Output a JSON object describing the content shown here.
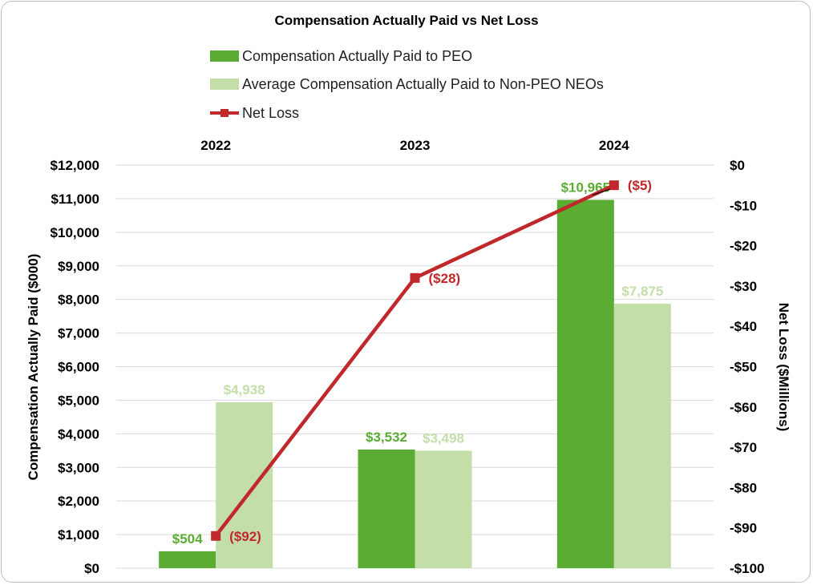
{
  "chart_data": {
    "type": "bar",
    "title": "Compensation Actually Paid vs Net Loss",
    "categories": [
      "2022",
      "2023",
      "2024"
    ],
    "ylabel": "Compensation Actually Paid ($000)",
    "y2label": "Net Loss ($Millions)",
    "ylim": [
      0,
      12000
    ],
    "y2lim": [
      -100,
      0
    ],
    "yticks": [
      "$0",
      "$1,000",
      "$2,000",
      "$3,000",
      "$4,000",
      "$5,000",
      "$6,000",
      "$7,000",
      "$8,000",
      "$9,000",
      "$10,000",
      "$11,000",
      "$12,000"
    ],
    "y2ticks": [
      "-$100",
      "-$90",
      "-$80",
      "-$70",
      "-$60",
      "-$50",
      "-$40",
      "-$30",
      "-$20",
      "-$10",
      "$0"
    ],
    "grid": true,
    "legend_position": "top",
    "series": [
      {
        "name": "Compensation Actually Paid to PEO",
        "type": "bar",
        "axis": "left",
        "color": "#5aac33",
        "values": [
          504,
          3532,
          10965
        ],
        "labels": [
          "$504",
          "$3,532",
          "$10,965"
        ]
      },
      {
        "name": "Average Compensation Actually Paid to Non-PEO NEOs",
        "type": "bar",
        "axis": "left",
        "color": "#c3dea8",
        "values": [
          4938,
          3498,
          7875
        ],
        "labels": [
          "$4,938",
          "$3,498",
          "$7,875"
        ]
      },
      {
        "name": "Net Loss",
        "type": "line",
        "axis": "right",
        "color": "#c0282b",
        "values": [
          -92,
          -28,
          -5
        ],
        "labels": [
          "($92)",
          "($28)",
          "($5)"
        ]
      }
    ]
  }
}
